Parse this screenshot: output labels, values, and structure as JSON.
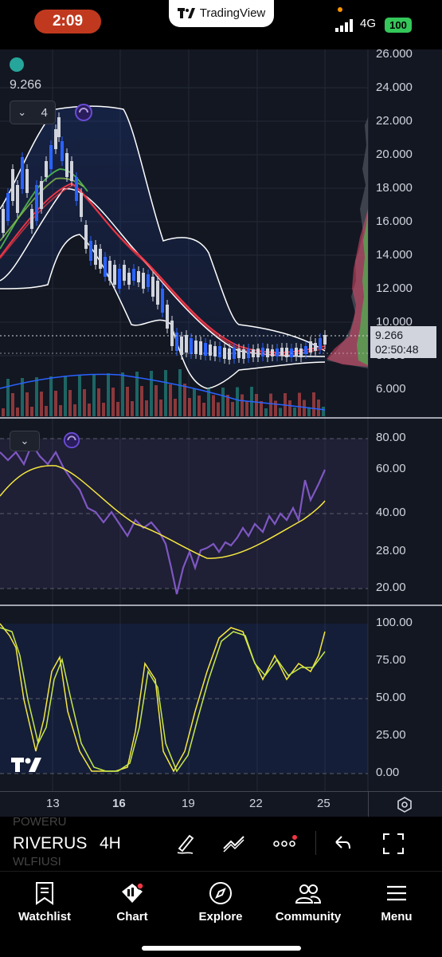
{
  "status_bar": {
    "time": "2:09",
    "app_name": "TradingView",
    "network": "4G",
    "battery": "100"
  },
  "chart": {
    "symbol": "RIVERUSDT",
    "symbol_shown": "RIVERUS",
    "interval": "4H",
    "indicator_count": "4",
    "ohlc_value": "9.266",
    "last_price": "9.266",
    "countdown": "02:50:48",
    "price_axis": [
      "26.000",
      "24.000",
      "22.000",
      "20.000",
      "18.000",
      "16.000",
      "14.000",
      "12.000",
      "10.000",
      "8.000",
      "6.000"
    ],
    "rsi_axis": [
      "80.00",
      "60.00",
      "40.00",
      "28.00",
      "20.00"
    ],
    "stoch_axis": [
      "100.00",
      "75.00",
      "50.00",
      "25.00",
      "0.00"
    ],
    "x_axis": [
      "13",
      "16",
      "19",
      "22",
      "25"
    ],
    "ghost_symbols": [
      "POWERU",
      "WLFIUSI"
    ],
    "colors": {
      "background": "#131722",
      "bullish": "#d1d4dc",
      "bearish": "#2962ff",
      "rsi": "#7e57c2",
      "rsi_ma": "#f5e640",
      "stoch_k": "#f5e640",
      "stoch_d": "#c5e84a",
      "bb": "#ffffff",
      "ema_red": "#f23645",
      "ema_green": "#4caf50"
    }
  },
  "toolbar": {
    "icons": [
      "draw-brush-icon",
      "trend-tools-icon",
      "more-icon",
      "undo-icon",
      "fullscreen-icon"
    ]
  },
  "tabs": [
    {
      "label": "Watchlist",
      "icon": "bookmark-icon"
    },
    {
      "label": "Chart",
      "icon": "chart-icon"
    },
    {
      "label": "Explore",
      "icon": "compass-icon"
    },
    {
      "label": "Community",
      "icon": "people-icon"
    },
    {
      "label": "Menu",
      "icon": "menu-icon"
    }
  ]
}
